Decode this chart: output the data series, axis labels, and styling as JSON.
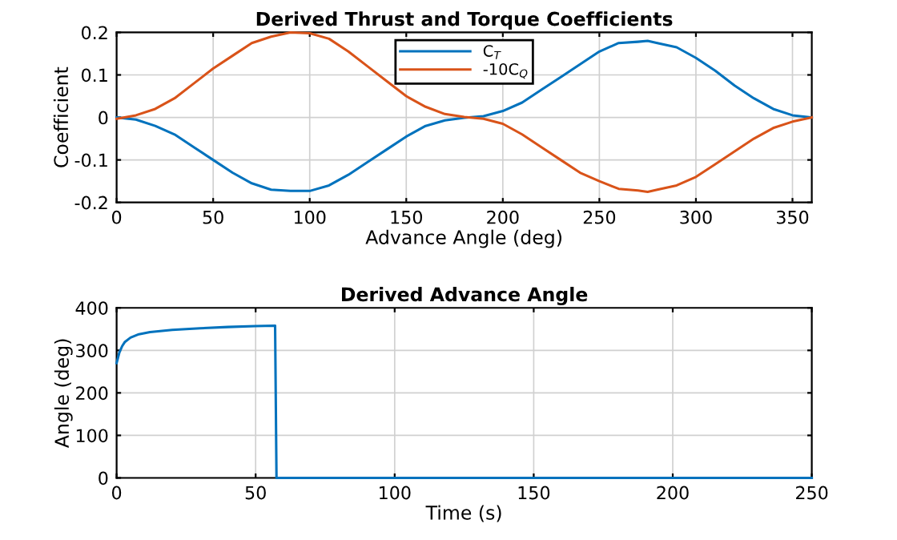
{
  "chart_data": [
    {
      "type": "line",
      "title": "Derived Thrust and Torque Coefficients",
      "xlabel": "Advance Angle (deg)",
      "ylabel": "Coefficient",
      "x": [
        0,
        10,
        20,
        30,
        40,
        50,
        60,
        70,
        80,
        90,
        100,
        110,
        120,
        130,
        140,
        150,
        160,
        170,
        180,
        190,
        200,
        210,
        220,
        230,
        240,
        250,
        260,
        270,
        275,
        280,
        290,
        300,
        310,
        320,
        330,
        340,
        350,
        360
      ],
      "series": [
        {
          "name": "C$_{T}$",
          "color": "#0072bd",
          "values": [
            0,
            -0.005,
            -0.02,
            -0.04,
            -0.07,
            -0.1,
            -0.13,
            -0.155,
            -0.17,
            -0.173,
            -0.173,
            -0.16,
            -0.135,
            -0.105,
            -0.075,
            -0.045,
            -0.02,
            -0.007,
            -0.001,
            0.003,
            0.015,
            0.035,
            0.065,
            0.095,
            0.125,
            0.155,
            0.175,
            0.178,
            0.18,
            0.175,
            0.165,
            0.14,
            0.11,
            0.075,
            0.045,
            0.02,
            0.005,
            0
          ]
        },
        {
          "name": "-10C$_{Q}$",
          "color": "#d95319",
          "values": [
            -0.003,
            0.005,
            0.02,
            0.045,
            0.08,
            0.115,
            0.145,
            0.175,
            0.19,
            0.2,
            0.198,
            0.185,
            0.155,
            0.12,
            0.085,
            0.05,
            0.025,
            0.008,
            0.001,
            -0.003,
            -0.015,
            -0.04,
            -0.07,
            -0.1,
            -0.13,
            -0.15,
            -0.168,
            -0.172,
            -0.175,
            -0.17,
            -0.16,
            -0.14,
            -0.11,
            -0.08,
            -0.05,
            -0.025,
            -0.01,
            0
          ]
        }
      ],
      "xlim": [
        0,
        360
      ],
      "xticks": [
        0,
        50,
        100,
        150,
        200,
        250,
        300,
        350
      ],
      "ylim": [
        -0.2,
        0.2
      ],
      "yticks": [
        -0.2,
        -0.1,
        0,
        0.1,
        0.2
      ],
      "grid": true,
      "legend": "top"
    },
    {
      "type": "line",
      "title": "Derived Advance Angle",
      "xlabel": "Time (s)",
      "ylabel": "Angle (deg)",
      "x": [
        0,
        1,
        2,
        3,
        5,
        8,
        12,
        20,
        30,
        40,
        50,
        57,
        57.5,
        100,
        150,
        200,
        250
      ],
      "series": [
        {
          "color": "#0072bd",
          "values": [
            270,
            295,
            310,
            320,
            330,
            338,
            343,
            348,
            352,
            355,
            357,
            358,
            0,
            0,
            0,
            0,
            0
          ]
        }
      ],
      "xlim": [
        0,
        250
      ],
      "xticks": [
        0,
        50,
        100,
        150,
        200,
        250
      ],
      "ylim": [
        0,
        400
      ],
      "yticks": [
        0,
        100,
        200,
        300,
        400
      ],
      "grid": true
    }
  ]
}
